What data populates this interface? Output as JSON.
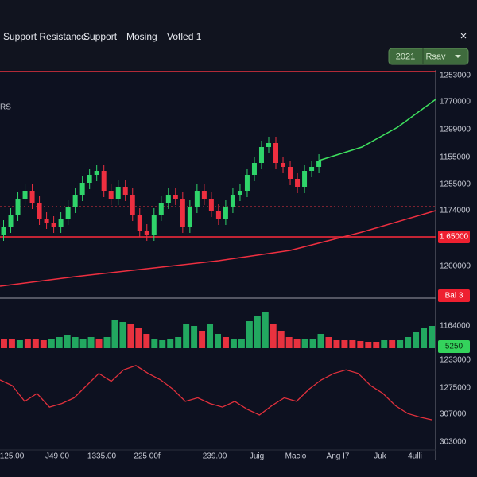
{
  "toolbar": {
    "tabs": [
      "Support Resistance",
      "Support",
      "Mosing",
      "Votled 1"
    ],
    "close": "×",
    "year": "2021",
    "save": "Rsav"
  },
  "side_label": "RS",
  "price_labels": [
    "1253000",
    "1770000",
    "1299000",
    "1155000",
    "1255000",
    "1174000",
    "1 65000",
    "1200000",
    "Bal 3",
    "1164000",
    "5250",
    "1233000",
    "1275000",
    "307000",
    "303000"
  ],
  "time_labels": [
    "125.00",
    "J49 00",
    "1335.00",
    "225 00f",
    "239.00",
    "Juig",
    "Maclo",
    "Ang I7",
    "Juk",
    "4ulli"
  ],
  "chart_data": [
    {
      "type": "candlestick",
      "open": [
        75,
        85,
        100,
        120,
        130,
        115,
        95,
        90,
        85,
        95,
        110,
        125,
        140,
        150,
        155,
        130,
        120,
        135,
        125,
        100,
        80,
        75,
        100,
        115,
        125,
        120,
        85,
        110,
        130,
        120,
        105,
        95,
        110,
        125,
        130,
        150,
        165,
        185,
        190,
        165,
        160,
        145,
        135,
        155,
        160
      ],
      "high": [
        93,
        108,
        128,
        138,
        138,
        123,
        103,
        98,
        103,
        118,
        133,
        148,
        158,
        163,
        163,
        138,
        143,
        143,
        133,
        108,
        88,
        108,
        123,
        133,
        133,
        128,
        118,
        138,
        138,
        128,
        113,
        118,
        133,
        138,
        158,
        173,
        193,
        198,
        198,
        173,
        168,
        153,
        163,
        168,
        176
      ],
      "low": [
        67,
        77,
        92,
        112,
        107,
        87,
        82,
        77,
        77,
        87,
        102,
        117,
        132,
        142,
        122,
        112,
        112,
        117,
        92,
        72,
        67,
        67,
        92,
        107,
        112,
        77,
        77,
        102,
        112,
        97,
        87,
        87,
        102,
        117,
        122,
        142,
        157,
        177,
        157,
        152,
        137,
        127,
        127,
        147,
        152
      ],
      "close": [
        85,
        100,
        120,
        130,
        115,
        95,
        90,
        85,
        95,
        110,
        125,
        140,
        150,
        155,
        130,
        120,
        135,
        125,
        100,
        80,
        75,
        100,
        115,
        125,
        120,
        85,
        110,
        130,
        120,
        105,
        95,
        110,
        125,
        130,
        150,
        165,
        185,
        190,
        165,
        160,
        145,
        135,
        155,
        160,
        168
      ],
      "up_color": "#2fd46a",
      "down_color": "#ee2f40",
      "xlim": [
        -0.5,
        60.3
      ],
      "ylim": [
        0,
        280
      ],
      "overlays": [
        {
          "x": [
            44,
            50,
            55,
            60.3
          ],
          "values": [
            168,
            185,
            210,
            245
          ],
          "color": "#3ee05e"
        },
        {
          "x": [
            -0.5,
            10,
            20,
            30,
            40,
            50,
            60.3
          ],
          "values": [
            10,
            22,
            32,
            42,
            55,
            78,
            105
          ],
          "color": "#ee2f40"
        }
      ],
      "levels": [
        {
          "value": 280,
          "color": "#e8323f",
          "style": "solid"
        },
        {
          "value": 110,
          "color": "#e8323f",
          "style": "dotted"
        },
        {
          "value": 72,
          "color": "#ff2a3a",
          "style": "solid"
        }
      ]
    },
    {
      "type": "bar",
      "values": [
        12,
        12,
        10,
        12,
        12,
        10,
        12,
        14,
        16,
        14,
        12,
        14,
        12,
        14,
        35,
        33,
        30,
        25,
        18,
        12,
        10,
        12,
        14,
        30,
        28,
        22,
        30,
        18,
        14,
        12,
        12,
        34,
        40,
        45,
        30,
        22,
        14,
        12,
        12,
        12,
        18,
        14,
        10,
        10,
        10,
        9,
        8,
        8,
        10,
        10,
        10,
        14,
        20,
        26,
        28
      ],
      "colors": [
        "#e8323f",
        "#e8323f",
        "#22a860",
        "#e8323f",
        "#e8323f",
        "#e8323f",
        "#22a860",
        "#22a860",
        "#22a860",
        "#22a860",
        "#22a860",
        "#22a860",
        "#e8323f",
        "#22a860",
        "#22a860",
        "#22a860",
        "#e8323f",
        "#e8323f",
        "#e8323f",
        "#22a860",
        "#22a860",
        "#22a860",
        "#22a860",
        "#22a860",
        "#22a860",
        "#e8323f",
        "#22a860",
        "#22a860",
        "#e8323f",
        "#22a860",
        "#22a860",
        "#22a860",
        "#22a860",
        "#22a860",
        "#e8323f",
        "#e8323f",
        "#e8323f",
        "#e8323f",
        "#22a860",
        "#22a860",
        "#22a860",
        "#e8323f",
        "#e8323f",
        "#e8323f",
        "#e8323f",
        "#e8323f",
        "#e8323f",
        "#e8323f",
        "#22a860",
        "#e8323f",
        "#22a860",
        "#22a860",
        "#22a860",
        "#22a860",
        "#22a860"
      ],
      "ylim": [
        0,
        50
      ]
    },
    {
      "type": "line",
      "values": [
        69,
        61,
        39,
        50,
        31,
        36,
        44,
        61,
        78,
        67,
        83,
        89,
        78,
        69,
        56,
        39,
        44,
        36,
        31,
        39,
        28,
        20,
        33,
        44,
        39,
        56,
        69,
        78,
        83,
        78,
        61,
        50,
        33,
        22,
        17,
        13
      ],
      "color": "#e0303c",
      "ylim": [
        0,
        100
      ]
    }
  ]
}
